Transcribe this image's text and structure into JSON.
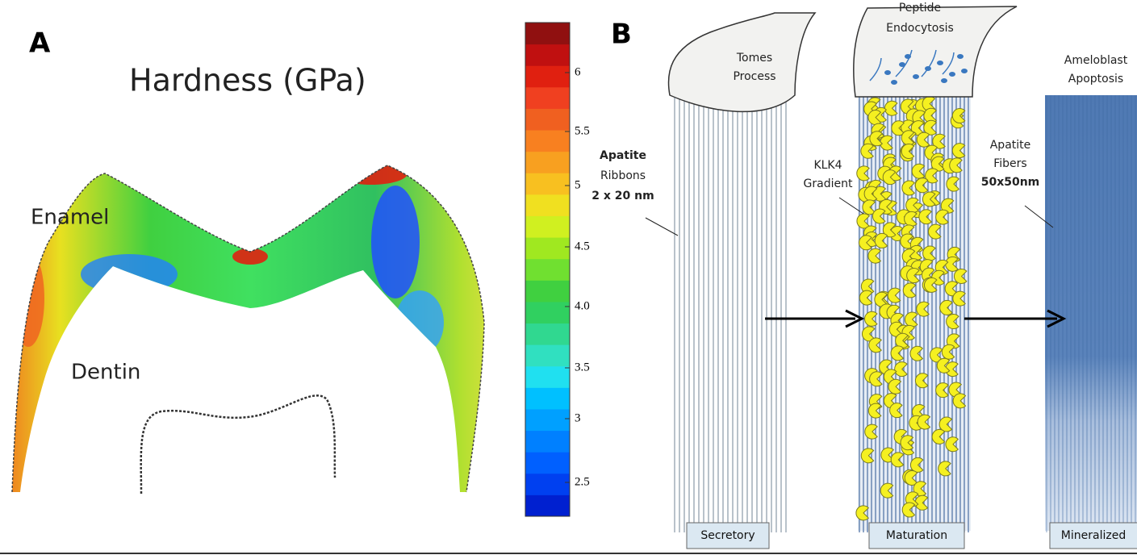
{
  "panel_a": {
    "label": "A",
    "title": "Hardness (GPa)",
    "regions": [
      "Enamel",
      "Dentin"
    ],
    "colorbar_ticks": [
      "6",
      "5.5",
      "5",
      "4.5",
      "4.0",
      "3.5",
      "3",
      "2.5"
    ]
  },
  "panel_b": {
    "label": "B",
    "tomes_process": [
      "Tomes",
      "Process"
    ],
    "peptide_endocytosis": [
      "Peptide",
      "Endocytosis"
    ],
    "apatite_ribbons": [
      "Apatite",
      "Ribbons",
      "2 x 20 nm"
    ],
    "klk4_gradient": [
      "KLK4",
      "Gradient"
    ],
    "apatite_fibers": [
      "Apatite",
      "Fibers",
      "50x50nm"
    ],
    "ameloblast_apoptosis": [
      "Ameloblast",
      "Apoptosis"
    ],
    "stages": [
      "Secretory",
      "Maturation",
      "Mineralized"
    ]
  }
}
